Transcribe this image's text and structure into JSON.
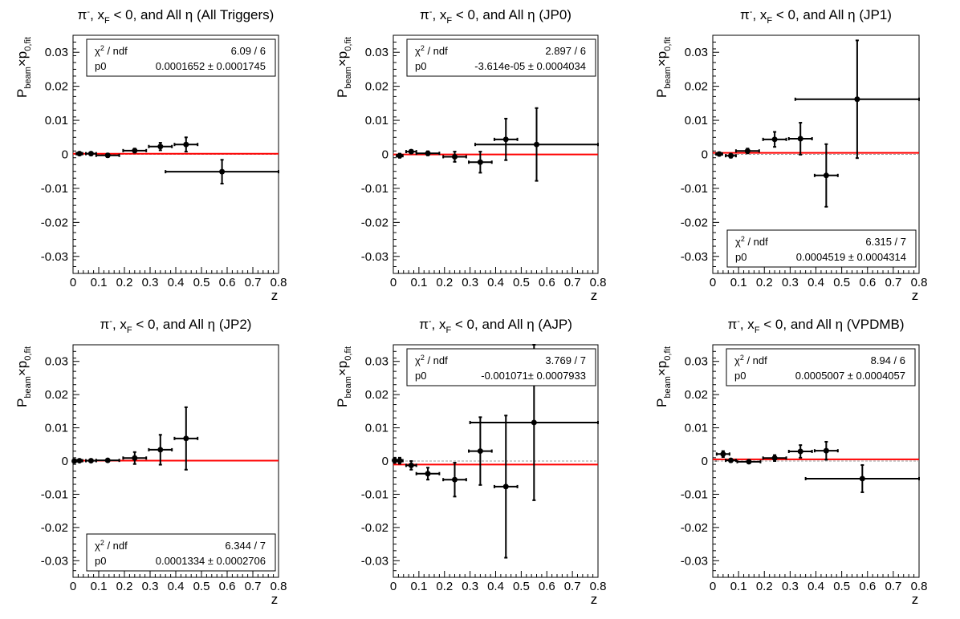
{
  "chart_data": [
    {
      "type": "scatter",
      "title": {
        "p": "π",
        "sup": "-",
        "mid": ", x",
        "sub": "F",
        "rest": " < 0, and All η (All Triggers)"
      },
      "ylabel": {
        "p": "P",
        "sub1": "beam",
        "x": "×p",
        "sub2": "0,fit"
      },
      "xlabel": "z",
      "xlim": [
        0,
        0.8
      ],
      "ylim": [
        -0.035,
        0.035
      ],
      "xticks": [
        "0",
        "0.1",
        "0.2",
        "0.3",
        "0.4",
        "0.5",
        "0.6",
        "0.7",
        "0.8"
      ],
      "yticks": [
        "-0.03",
        "-0.02",
        "-0.01",
        "0",
        "0.01",
        "0.02",
        "0.03"
      ],
      "stats": {
        "position": "top",
        "chi2_label": "χ",
        "chi2_sup": "2",
        "chi2_rest": " / ndf",
        "chi2_value": "6.09 / 6",
        "p0_label": "p0",
        "p0_value": "0.0001652 ± 0.0001745"
      },
      "fit": 0.00017,
      "points": [
        {
          "x": 0.025,
          "xerr": 0.012,
          "y": 0.0002,
          "yerr": 0.0004
        },
        {
          "x": 0.07,
          "xerr": 0.02,
          "y": 0.0002,
          "yerr": 0.0004
        },
        {
          "x": 0.135,
          "xerr": 0.045,
          "y": -0.0003,
          "yerr": 0.0005
        },
        {
          "x": 0.24,
          "xerr": 0.045,
          "y": 0.0011,
          "yerr": 0.0006
        },
        {
          "x": 0.34,
          "xerr": 0.045,
          "y": 0.0023,
          "yerr": 0.0011
        },
        {
          "x": 0.44,
          "xerr": 0.045,
          "y": 0.0029,
          "yerr": 0.0021
        },
        {
          "x": 0.58,
          "xerr": 0.22,
          "y": -0.0051,
          "yerr": 0.0035
        }
      ]
    },
    {
      "type": "scatter",
      "title": {
        "p": "π",
        "sup": "-",
        "mid": ", x",
        "sub": "F",
        "rest": " < 0, and All η (JP0)"
      },
      "ylabel": {
        "p": "P",
        "sub1": "beam",
        "x": "×p",
        "sub2": "0,fit"
      },
      "xlabel": "z",
      "xlim": [
        0,
        0.8
      ],
      "ylim": [
        -0.035,
        0.035
      ],
      "xticks": [
        "0",
        "0.1",
        "0.2",
        "0.3",
        "0.4",
        "0.5",
        "0.6",
        "0.7",
        "0.8"
      ],
      "yticks": [
        "-0.03",
        "-0.02",
        "-0.01",
        "0",
        "0.01",
        "0.02",
        "0.03"
      ],
      "stats": {
        "position": "top",
        "chi2_label": "χ",
        "chi2_sup": "2",
        "chi2_rest": " / ndf",
        "chi2_value": "2.897 / 6",
        "p0_label": "p0",
        "p0_value": "-3.614e-05 ± 0.0004034"
      },
      "fit": -4e-05,
      "points": [
        {
          "x": 0.025,
          "xerr": 0.012,
          "y": -0.0004,
          "yerr": 0.0006
        },
        {
          "x": 0.07,
          "xerr": 0.02,
          "y": 0.0008,
          "yerr": 0.0005
        },
        {
          "x": 0.135,
          "xerr": 0.045,
          "y": 0.0003,
          "yerr": 0.0006
        },
        {
          "x": 0.24,
          "xerr": 0.045,
          "y": -0.0007,
          "yerr": 0.0015
        },
        {
          "x": 0.34,
          "xerr": 0.045,
          "y": -0.0023,
          "yerr": 0.0031
        },
        {
          "x": 0.44,
          "xerr": 0.045,
          "y": 0.0044,
          "yerr": 0.0061
        },
        {
          "x": 0.56,
          "xerr": 0.24,
          "y": 0.0029,
          "yerr": 0.0107
        }
      ]
    },
    {
      "type": "scatter",
      "title": {
        "p": "π",
        "sup": "-",
        "mid": ", x",
        "sub": "F",
        "rest": " < 0, and All η (JP1)"
      },
      "ylabel": {
        "p": "P",
        "sub1": "beam",
        "x": "×p",
        "sub2": "0,fit"
      },
      "xlabel": "z",
      "xlim": [
        0,
        0.8
      ],
      "ylim": [
        -0.035,
        0.035
      ],
      "xticks": [
        "0",
        "0.1",
        "0.2",
        "0.3",
        "0.4",
        "0.5",
        "0.6",
        "0.7",
        "0.8"
      ],
      "yticks": [
        "-0.03",
        "-0.02",
        "-0.01",
        "0",
        "0.01",
        "0.02",
        "0.03"
      ],
      "stats": {
        "position": "bottom",
        "chi2_label": "χ",
        "chi2_sup": "2",
        "chi2_rest": " / ndf",
        "chi2_value": "6.315 / 7",
        "p0_label": "p0",
        "p0_value": "0.0004519 ± 0.0004314"
      },
      "fit": 0.00045,
      "points": [
        {
          "x": 0.025,
          "xerr": 0.012,
          "y": 0.0001,
          "yerr": 0.0005
        },
        {
          "x": 0.07,
          "xerr": 0.02,
          "y": -0.0004,
          "yerr": 0.0006
        },
        {
          "x": 0.135,
          "xerr": 0.045,
          "y": 0.001,
          "yerr": 0.0007
        },
        {
          "x": 0.24,
          "xerr": 0.045,
          "y": 0.0044,
          "yerr": 0.0022
        },
        {
          "x": 0.34,
          "xerr": 0.045,
          "y": 0.0046,
          "yerr": 0.0047
        },
        {
          "x": 0.44,
          "xerr": 0.045,
          "y": -0.0062,
          "yerr": 0.0092
        },
        {
          "x": 0.56,
          "xerr": 0.24,
          "y": 0.0162,
          "yerr": 0.0173
        }
      ]
    },
    {
      "type": "scatter",
      "title": {
        "p": "π",
        "sup": "-",
        "mid": ", x",
        "sub": "F",
        "rest": " < 0, and All η (JP2)"
      },
      "ylabel": {
        "p": "P",
        "sub1": "beam",
        "x": "×p",
        "sub2": "0,fit"
      },
      "xlabel": "z",
      "xlim": [
        0,
        0.8
      ],
      "ylim": [
        -0.035,
        0.035
      ],
      "xticks": [
        "0",
        "0.1",
        "0.2",
        "0.3",
        "0.4",
        "0.5",
        "0.6",
        "0.7",
        "0.8"
      ],
      "yticks": [
        "-0.03",
        "-0.02",
        "-0.01",
        "0",
        "0.01",
        "0.02",
        "0.03"
      ],
      "stats": {
        "position": "bottom",
        "chi2_label": "χ",
        "chi2_sup": "2",
        "chi2_rest": " / ndf",
        "chi2_value": "6.344 / 7",
        "p0_label": "p0",
        "p0_value": "0.0001334 ± 0.0002706"
      },
      "fit": 0.00013,
      "points": [
        {
          "x": 0.005,
          "xerr": 0.005,
          "y": 0.0,
          "yerr": 0.0003
        },
        {
          "x": 0.025,
          "xerr": 0.012,
          "y": 0.0001,
          "yerr": 0.0004
        },
        {
          "x": 0.07,
          "xerr": 0.02,
          "y": 0.0001,
          "yerr": 0.0004
        },
        {
          "x": 0.135,
          "xerr": 0.045,
          "y": 0.0002,
          "yerr": 0.0004
        },
        {
          "x": 0.24,
          "xerr": 0.045,
          "y": 0.0009,
          "yerr": 0.0018
        },
        {
          "x": 0.34,
          "xerr": 0.045,
          "y": 0.0034,
          "yerr": 0.0045
        },
        {
          "x": 0.44,
          "xerr": 0.045,
          "y": 0.0068,
          "yerr": 0.0094
        }
      ]
    },
    {
      "type": "scatter",
      "title": {
        "p": "π",
        "sup": "-",
        "mid": ", x",
        "sub": "F",
        "rest": " < 0, and All η (AJP)"
      },
      "ylabel": {
        "p": "P",
        "sub1": "beam",
        "x": "×p",
        "sub2": "0,fit"
      },
      "xlabel": "z",
      "xlim": [
        0,
        0.8
      ],
      "ylim": [
        -0.035,
        0.035
      ],
      "xticks": [
        "0",
        "0.1",
        "0.2",
        "0.3",
        "0.4",
        "0.5",
        "0.6",
        "0.7",
        "0.8"
      ],
      "yticks": [
        "-0.03",
        "-0.02",
        "-0.01",
        "0",
        "0.01",
        "0.02",
        "0.03"
      ],
      "stats": {
        "position": "top",
        "chi2_label": "χ",
        "chi2_sup": "2",
        "chi2_rest": " / ndf",
        "chi2_value": "3.769 / 7",
        "p0_label": "p0",
        "p0_value": "-0.001071± 0.0007933"
      },
      "fit": -0.00107,
      "points": [
        {
          "x": 0.005,
          "xerr": 0.005,
          "y": 0.0002,
          "yerr": 0.0008
        },
        {
          "x": 0.025,
          "xerr": 0.012,
          "y": 0.0001,
          "yerr": 0.0009
        },
        {
          "x": 0.07,
          "xerr": 0.02,
          "y": -0.0013,
          "yerr": 0.0013
        },
        {
          "x": 0.135,
          "xerr": 0.045,
          "y": -0.0038,
          "yerr": 0.0018
        },
        {
          "x": 0.24,
          "xerr": 0.045,
          "y": -0.0056,
          "yerr": 0.0051
        },
        {
          "x": 0.34,
          "xerr": 0.045,
          "y": 0.003,
          "yerr": 0.0102
        },
        {
          "x": 0.44,
          "xerr": 0.045,
          "y": -0.0077,
          "yerr": 0.0214
        },
        {
          "x": 0.55,
          "xerr": 0.25,
          "y": 0.0116,
          "yerr": 0.0234
        }
      ]
    },
    {
      "type": "scatter",
      "title": {
        "p": "π",
        "sup": "-",
        "mid": ", x",
        "sub": "F",
        "rest": " < 0, and All η (VPDMB)"
      },
      "ylabel": {
        "p": "P",
        "sub1": "beam",
        "x": "×p",
        "sub2": "0,fit"
      },
      "xlabel": "z",
      "xlim": [
        0,
        0.8
      ],
      "ylim": [
        -0.035,
        0.035
      ],
      "xticks": [
        "0",
        "0.1",
        "0.2",
        "0.3",
        "0.4",
        "0.5",
        "0.6",
        "0.7",
        "0.8"
      ],
      "yticks": [
        "-0.03",
        "-0.02",
        "-0.01",
        "0",
        "0.01",
        "0.02",
        "0.03"
      ],
      "stats": {
        "position": "top",
        "chi2_label": "χ",
        "chi2_sup": "2",
        "chi2_rest": " / ndf",
        "chi2_value": "8.94 / 6",
        "p0_label": "p0",
        "p0_value": "0.0005007 ± 0.0004057"
      },
      "fit": 0.0005,
      "points": [
        {
          "x": 0.04,
          "xerr": 0.025,
          "y": 0.0021,
          "yerr": 0.0009
        },
        {
          "x": 0.07,
          "xerr": 0.02,
          "y": 0.0002,
          "yerr": 0.0005
        },
        {
          "x": 0.14,
          "xerr": 0.045,
          "y": -0.0002,
          "yerr": 0.0005
        },
        {
          "x": 0.24,
          "xerr": 0.045,
          "y": 0.0009,
          "yerr": 0.0009
        },
        {
          "x": 0.34,
          "xerr": 0.045,
          "y": 0.0029,
          "yerr": 0.0019
        },
        {
          "x": 0.44,
          "xerr": 0.045,
          "y": 0.0031,
          "yerr": 0.0027
        },
        {
          "x": 0.58,
          "xerr": 0.22,
          "y": -0.0053,
          "yerr": 0.0041
        }
      ]
    }
  ],
  "colors": {
    "fit": "#ff0000",
    "zero_line": "#9a9a9a",
    "marker": "#000000"
  }
}
